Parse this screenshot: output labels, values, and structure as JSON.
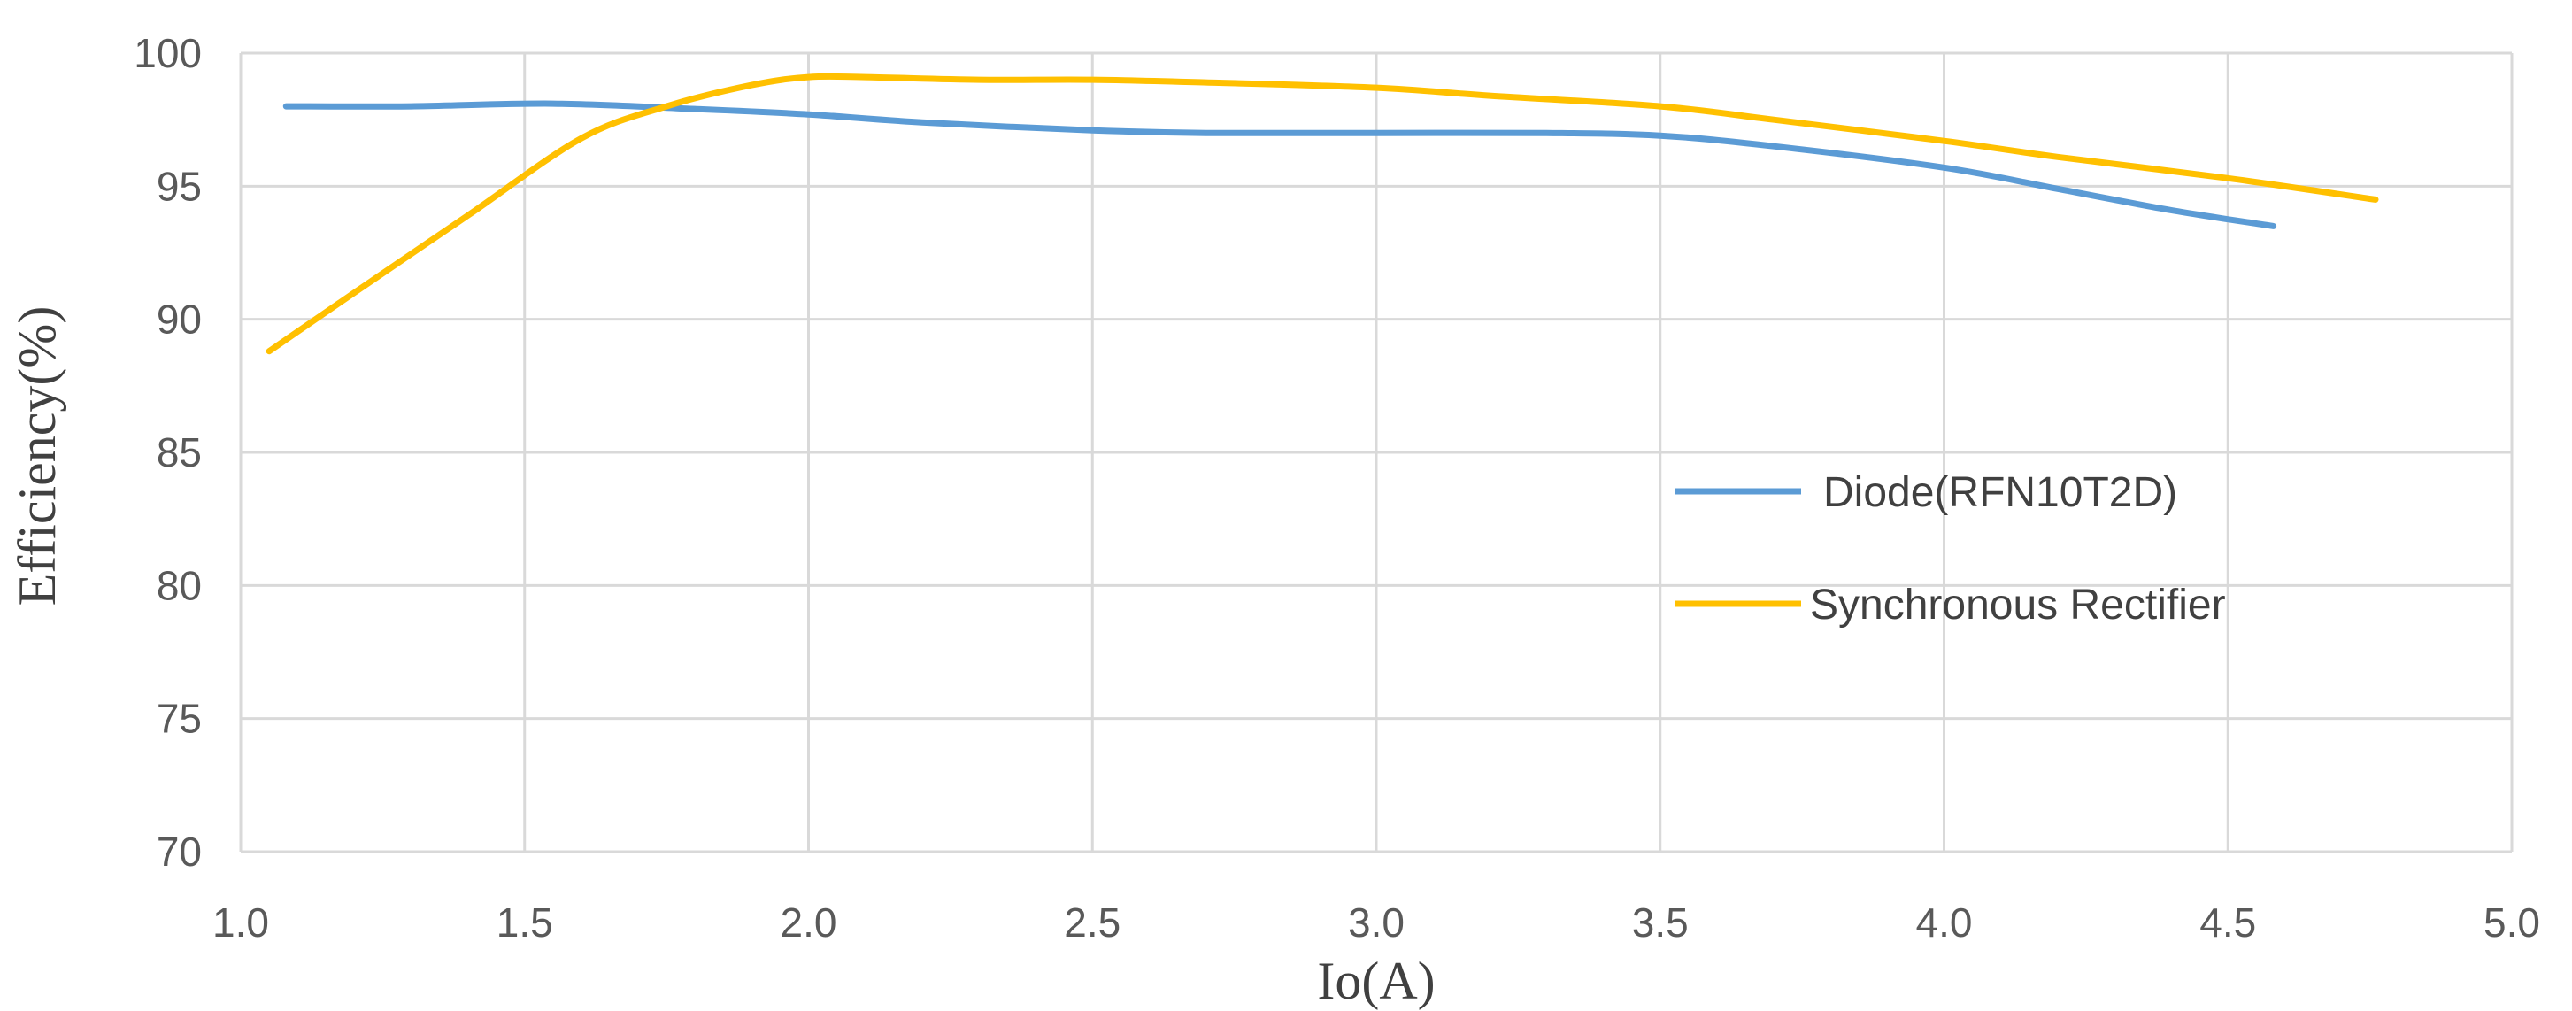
{
  "chart_data": {
    "type": "line",
    "title": "",
    "xlabel": "Io(A)",
    "ylabel": "Efficiency(%)",
    "xlim": [
      1.0,
      5.0
    ],
    "ylim": [
      70,
      100
    ],
    "x_ticks": [
      "1.0",
      "1.5",
      "2.0",
      "2.5",
      "3.0",
      "3.5",
      "4.0",
      "4.5",
      "5.0"
    ],
    "y_ticks": [
      "70",
      "75",
      "80",
      "85",
      "90",
      "95",
      "100"
    ],
    "grid": true,
    "legend_position": "center-right",
    "series": [
      {
        "name": "Diode(RFN10T2D)",
        "color": "#5B9BD5",
        "x": [
          1.08,
          1.3,
          1.55,
          1.8,
          2.0,
          2.2,
          2.5,
          2.7,
          3.0,
          3.3,
          3.5,
          3.7,
          4.0,
          4.2,
          4.4,
          4.58
        ],
        "y": [
          98.0,
          98.0,
          98.1,
          97.9,
          97.7,
          97.4,
          97.1,
          97.0,
          97.0,
          97.0,
          96.9,
          96.5,
          95.7,
          94.9,
          94.1,
          93.5
        ]
      },
      {
        "name": "Synchronous Rectifier",
        "color": "#FFC000",
        "x": [
          1.05,
          1.2,
          1.4,
          1.6,
          1.75,
          1.9,
          2.0,
          2.1,
          2.3,
          2.5,
          2.7,
          3.0,
          3.2,
          3.5,
          3.7,
          4.0,
          4.2,
          4.5,
          4.76
        ],
        "y": [
          88.8,
          91.0,
          93.9,
          96.8,
          98.0,
          98.8,
          99.1,
          99.1,
          99.0,
          99.0,
          98.9,
          98.7,
          98.4,
          98.0,
          97.5,
          96.7,
          96.1,
          95.3,
          94.5
        ]
      }
    ]
  }
}
